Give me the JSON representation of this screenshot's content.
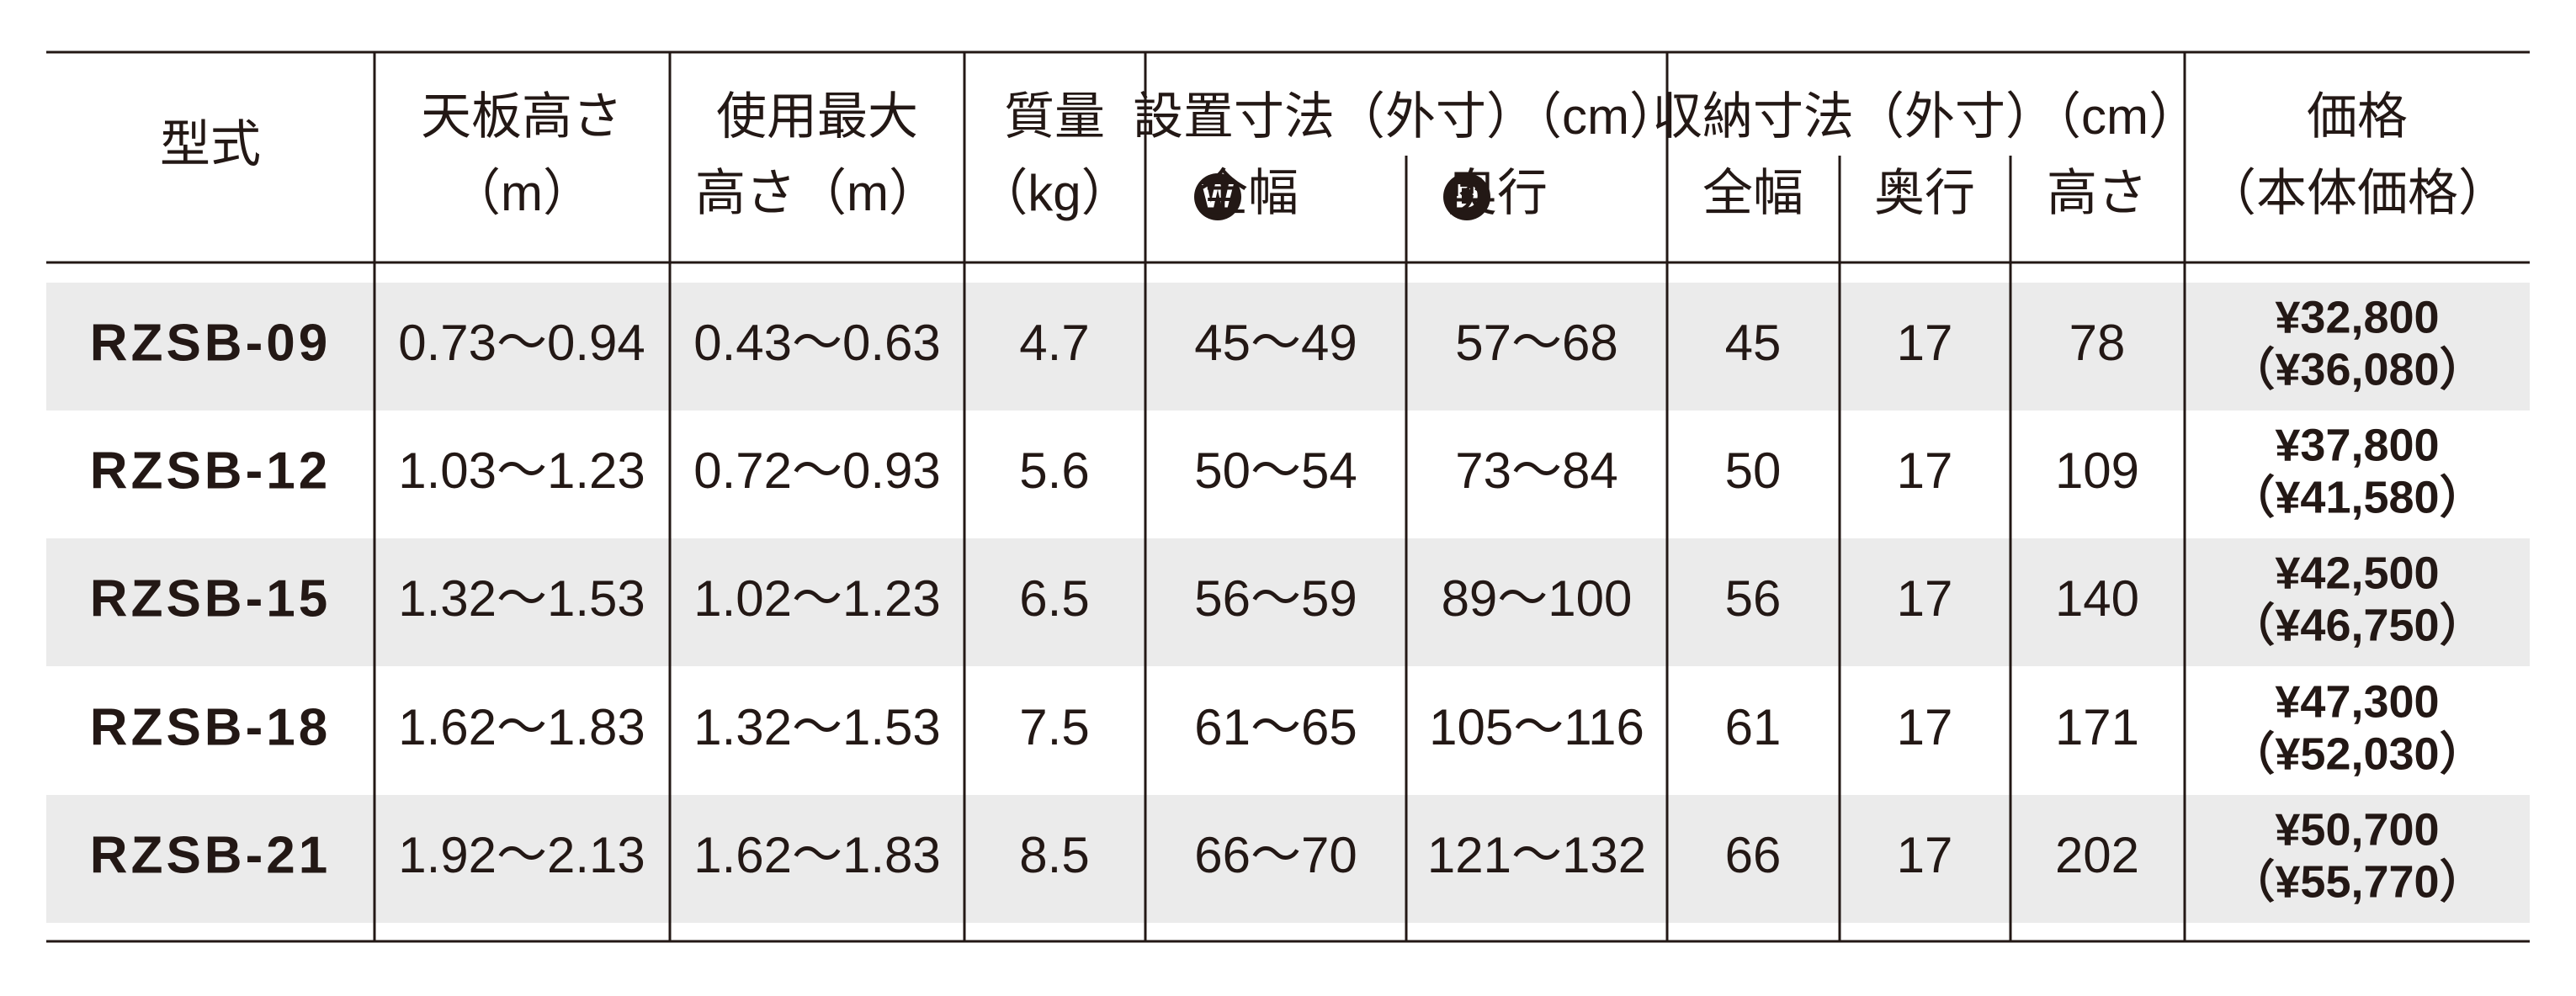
{
  "table": {
    "columns": [
      {
        "lines": [
          "型式"
        ]
      },
      {
        "lines": [
          "天板高さ",
          "（m）"
        ]
      },
      {
        "lines": [
          "使用最大",
          "高さ（m）"
        ]
      },
      {
        "lines": [
          "質量",
          "（kg）"
        ]
      },
      {
        "label": "設置寸法（外寸）（cm）",
        "sub": [
          {
            "badge": "W",
            "label": "全幅"
          },
          {
            "badge": "D",
            "label": "奥行"
          }
        ]
      },
      {
        "label": "収納寸法（外寸）（cm）",
        "sub": [
          {
            "label": "全幅"
          },
          {
            "label": "奥行"
          },
          {
            "label": "高さ"
          }
        ]
      },
      {
        "lines": [
          "価格",
          "（本体価格）"
        ]
      }
    ],
    "rows": [
      [
        "RZSB-09",
        "0.73〜0.94",
        "0.43〜0.63",
        "4.7",
        "45〜49",
        "57〜68",
        "45",
        "17",
        "78",
        "¥32,800",
        "（¥36,080）"
      ],
      [
        "RZSB-12",
        "1.03〜1.23",
        "0.72〜0.93",
        "5.6",
        "50〜54",
        "73〜84",
        "50",
        "17",
        "109",
        "¥37,800",
        "（¥41,580）"
      ],
      [
        "RZSB-15",
        "1.32〜1.53",
        "1.02〜1.23",
        "6.5",
        "56〜59",
        "89〜100",
        "56",
        "17",
        "140",
        "¥42,500",
        "（¥46,750）"
      ],
      [
        "RZSB-18",
        "1.62〜1.83",
        "1.32〜1.53",
        "7.5",
        "61〜65",
        "105〜116",
        "61",
        "17",
        "171",
        "¥47,300",
        "（¥52,030）"
      ],
      [
        "RZSB-21",
        "1.92〜2.13",
        "1.62〜1.83",
        "8.5",
        "66〜70",
        "121〜132",
        "66",
        "17",
        "202",
        "¥50,700",
        "（¥55,770）"
      ]
    ]
  }
}
